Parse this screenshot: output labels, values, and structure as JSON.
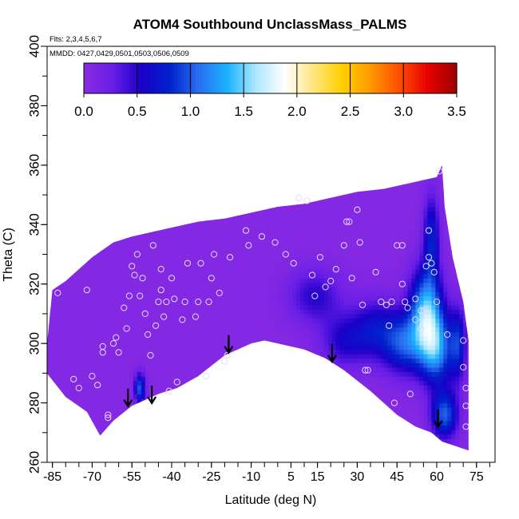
{
  "chart_data": {
    "type": "heatmap",
    "title": "ATOM4 Southbound UnclassMass_PALMS",
    "annotations": [
      "Flts: 2,3,4,5,6,7",
      "MMDD: 0427,0429,0501,0503,0506,0509"
    ],
    "xlabel": "Latitude (deg N)",
    "ylabel": "Theta (C)",
    "xlim": [
      -87,
      82
    ],
    "ylim": [
      260,
      400
    ],
    "xticks": [
      -85,
      -70,
      -55,
      -40,
      -25,
      -10,
      5,
      15,
      30,
      45,
      60,
      75
    ],
    "xtick_labels": [
      "-85",
      "-70",
      "-55",
      "-40",
      "-25",
      "-10",
      "5",
      "15",
      "30",
      "45",
      "60",
      "75"
    ],
    "yticks": [
      260,
      280,
      300,
      320,
      340,
      360,
      380,
      400
    ],
    "ytick_labels": [
      "260",
      "280",
      "300",
      "320",
      "340",
      "360",
      "380",
      "400"
    ],
    "colorbar": {
      "ticks": [
        0.0,
        0.5,
        1.0,
        1.5,
        2.0,
        2.5,
        3.0,
        3.5
      ],
      "tick_labels": [
        "0.0",
        "0.5",
        "1.0",
        "1.5",
        "2.0",
        "2.5",
        "3.0",
        "3.5"
      ],
      "range": [
        0,
        3.5
      ],
      "colors": [
        "#8a2be2",
        "#6a1ee6",
        "#1a00c8",
        "#0022cc",
        "#2a6ef0",
        "#1ab2ff",
        "#aee8ff",
        "#ffffff",
        "#ffe680",
        "#ffd000",
        "#ff9900",
        "#ff4d00",
        "#e60000",
        "#9e0000"
      ]
    },
    "field": {
      "background_value": 0.05,
      "boundary_top": [
        [
          -88,
          291
        ],
        [
          -85,
          318
        ],
        [
          -80,
          321
        ],
        [
          -70,
          329
        ],
        [
          -62,
          334
        ],
        [
          -55,
          336
        ],
        [
          -45,
          338
        ],
        [
          -30,
          341
        ],
        [
          -20,
          342
        ],
        [
          -10,
          344
        ],
        [
          0,
          346
        ],
        [
          10,
          347
        ],
        [
          20,
          349
        ],
        [
          30,
          351
        ],
        [
          40,
          352
        ],
        [
          50,
          354
        ],
        [
          55,
          355
        ],
        [
          60,
          356
        ],
        [
          62,
          360
        ],
        [
          63,
          346
        ],
        [
          66,
          329
        ],
        [
          70,
          314
        ],
        [
          72,
          301
        ],
        [
          72,
          264
        ]
      ],
      "boundary_bottom": [
        [
          -88,
          291
        ],
        [
          -80,
          282
        ],
        [
          -72,
          277
        ],
        [
          -67,
          269
        ],
        [
          -62,
          274
        ],
        [
          -55,
          279
        ],
        [
          -50,
          281
        ],
        [
          -45,
          283
        ],
        [
          -38,
          285
        ],
        [
          -30,
          289
        ],
        [
          -20,
          296
        ],
        [
          -10,
          300
        ],
        [
          -5,
          301
        ],
        [
          0,
          300
        ],
        [
          10,
          298
        ],
        [
          18,
          295
        ],
        [
          25,
          291
        ],
        [
          35,
          284
        ],
        [
          45,
          276
        ],
        [
          52,
          272
        ],
        [
          58,
          270
        ],
        [
          62,
          267
        ],
        [
          72,
          264
        ]
      ],
      "blobs": [
        {
          "lat": 14,
          "theta": 316,
          "value": 0.45,
          "slat": 10,
          "stheta": 9
        },
        {
          "lat": 25,
          "theta": 301,
          "value": 0.45,
          "slat": 9,
          "stheta": 9
        },
        {
          "lat": 37,
          "theta": 305,
          "value": 0.55,
          "slat": 9,
          "stheta": 10
        },
        {
          "lat": 48,
          "theta": 300,
          "value": 0.85,
          "slat": 8,
          "stheta": 10
        },
        {
          "lat": 56,
          "theta": 311,
          "value": 1.3,
          "slat": 6,
          "stheta": 14
        },
        {
          "lat": 60,
          "theta": 298,
          "value": 1.05,
          "slat": 6,
          "stheta": 12
        },
        {
          "lat": 63,
          "theta": 276,
          "value": 0.95,
          "slat": 5,
          "stheta": 8
        },
        {
          "lat": 58,
          "theta": 336,
          "value": 0.7,
          "slat": 3,
          "stheta": 14
        },
        {
          "lat": 68,
          "theta": 300,
          "value": 0.7,
          "slat": 3,
          "stheta": 12
        },
        {
          "lat": -52,
          "theta": 285,
          "value": 0.95,
          "slat": 2,
          "stheta": 5
        }
      ]
    },
    "arrows": [
      {
        "lat": -56.5,
        "theta": 284
      },
      {
        "lat": -47.5,
        "theta": 285
      },
      {
        "lat": -18.5,
        "theta": 302
      },
      {
        "lat": 20.5,
        "theta": 299
      },
      {
        "lat": 60.5,
        "theta": 277
      }
    ],
    "points": [
      [
        -83,
        317
      ],
      [
        -77,
        288
      ],
      [
        -75,
        285
      ],
      [
        -72,
        318
      ],
      [
        -70,
        289
      ],
      [
        -68,
        286
      ],
      [
        -66,
        297
      ],
      [
        -66,
        299
      ],
      [
        -64,
        275
      ],
      [
        -64,
        276
      ],
      [
        -62,
        300
      ],
      [
        -61,
        302
      ],
      [
        -60,
        297
      ],
      [
        -58,
        312
      ],
      [
        -57,
        305
      ],
      [
        -56,
        316
      ],
      [
        -55,
        326
      ],
      [
        -54,
        323
      ],
      [
        -53,
        330
      ],
      [
        -52,
        316
      ],
      [
        -51,
        322
      ],
      [
        -50,
        310
      ],
      [
        -49,
        303
      ],
      [
        -48,
        296
      ],
      [
        -47,
        333
      ],
      [
        -46,
        306
      ],
      [
        -45,
        314
      ],
      [
        -44,
        318
      ],
      [
        -44,
        325
      ],
      [
        -43,
        309
      ],
      [
        -42,
        314
      ],
      [
        -41,
        284
      ],
      [
        -40,
        322
      ],
      [
        -39,
        315
      ],
      [
        -38,
        287
      ],
      [
        -36,
        308
      ],
      [
        -35,
        314
      ],
      [
        -34,
        327
      ],
      [
        -31,
        309
      ],
      [
        -30,
        314
      ],
      [
        -29,
        327
      ],
      [
        -27,
        289
      ],
      [
        -26,
        314
      ],
      [
        -25,
        322
      ],
      [
        -24,
        330
      ],
      [
        -22,
        317
      ],
      [
        -20,
        294
      ],
      [
        -19,
        296
      ],
      [
        -18,
        329
      ],
      [
        -12,
        338
      ],
      [
        -11,
        333
      ],
      [
        -6,
        336
      ],
      [
        -1,
        334
      ],
      [
        3,
        330
      ],
      [
        6,
        327
      ],
      [
        8,
        349
      ],
      [
        11,
        348
      ],
      [
        13,
        323
      ],
      [
        14,
        316
      ],
      [
        16,
        329
      ],
      [
        18,
        319
      ],
      [
        20,
        321
      ],
      [
        22,
        325
      ],
      [
        25,
        333
      ],
      [
        26,
        341
      ],
      [
        27,
        341
      ],
      [
        28,
        322
      ],
      [
        30,
        345
      ],
      [
        31,
        334
      ],
      [
        32,
        313
      ],
      [
        33,
        291
      ],
      [
        34,
        291
      ],
      [
        37,
        324
      ],
      [
        39,
        314
      ],
      [
        41,
        313
      ],
      [
        42,
        306
      ],
      [
        43,
        314
      ],
      [
        44,
        280
      ],
      [
        45,
        333
      ],
      [
        47,
        333
      ],
      [
        47,
        320
      ],
      [
        48,
        314
      ],
      [
        49,
        312
      ],
      [
        50,
        283
      ],
      [
        52,
        308
      ],
      [
        52,
        315
      ],
      [
        54,
        305
      ],
      [
        54,
        311
      ],
      [
        55,
        311
      ],
      [
        56,
        326
      ],
      [
        57,
        329
      ],
      [
        57,
        338
      ],
      [
        58,
        327
      ],
      [
        59,
        324
      ],
      [
        60,
        314
      ],
      [
        61,
        358
      ],
      [
        64,
        303
      ],
      [
        70,
        301
      ],
      [
        70,
        292
      ],
      [
        71,
        285
      ],
      [
        71,
        279
      ],
      [
        71,
        272
      ]
    ]
  }
}
